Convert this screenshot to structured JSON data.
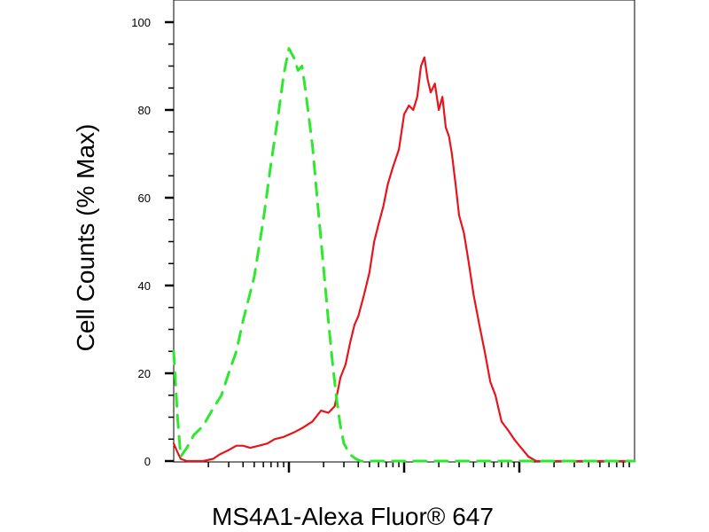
{
  "chart_data": {
    "type": "line",
    "title": "",
    "xlabel": "MS4A1-Alexa Fluor® 647",
    "ylabel": "Cell Counts (% Max)",
    "x_scale": "log",
    "xlim": [
      1,
      10000
    ],
    "ylim": [
      0,
      100
    ],
    "y_ticks": [
      0,
      20,
      40,
      60,
      80,
      100
    ],
    "y_tick_labels": [
      "0",
      "20",
      "40",
      "60",
      "80",
      "100"
    ],
    "x_tick_labels": [],
    "grid": false,
    "legend": "none",
    "series": [
      {
        "style": "solid",
        "color": "#e8141b",
        "x": [
          1.0,
          1.08,
          1.15,
          1.3,
          1.5,
          1.8,
          2.2,
          2.5,
          3.0,
          3.5,
          4.0,
          4.6,
          5.5,
          6.5,
          7.5,
          9.0,
          11,
          13,
          16,
          19,
          22,
          25,
          28,
          31,
          34,
          37,
          40,
          45,
          50,
          55,
          60,
          66,
          72,
          80,
          90,
          100,
          110,
          120,
          130,
          140,
          150,
          160,
          170,
          185,
          200,
          215,
          230,
          245,
          260,
          280,
          300,
          330,
          360,
          400,
          450,
          500,
          560,
          620,
          700,
          800,
          900,
          1000,
          1200,
          1400,
          1600,
          1800,
          2000,
          2500,
          3000,
          4000,
          5000,
          7000,
          10000
        ],
        "y": [
          4,
          2,
          0.5,
          0,
          0,
          0,
          0.5,
          1.5,
          2.5,
          3.5,
          3.5,
          3,
          3.5,
          4,
          5,
          5.5,
          6.5,
          7.5,
          9,
          11.5,
          11,
          12.5,
          19,
          22,
          27,
          31,
          33,
          38,
          43,
          50,
          54,
          58,
          63,
          67,
          71,
          79,
          81,
          80,
          83,
          90,
          92,
          87,
          84,
          86,
          80,
          83,
          76,
          74,
          70,
          63,
          56,
          52,
          46,
          38,
          31,
          25,
          18,
          15,
          9,
          7,
          5,
          3.5,
          1,
          0,
          0,
          0,
          0,
          0,
          0,
          0,
          0,
          0,
          0
        ]
      },
      {
        "style": "dashed",
        "color": "#2ee82e",
        "x": [
          1.0,
          1.08,
          1.15,
          1.3,
          1.5,
          1.8,
          2.2,
          2.6,
          3.0,
          3.5,
          4.0,
          5.0,
          6.0,
          7.0,
          8.0,
          9.0,
          10,
          11,
          12,
          13,
          14,
          16,
          18,
          20,
          22,
          24,
          26,
          28,
          30,
          34,
          38,
          42,
          50,
          60,
          80,
          100,
          200,
          400,
          1000,
          3000,
          10000
        ],
        "y": [
          25,
          10,
          1,
          3,
          6,
          8,
          12,
          15,
          20,
          25,
          32,
          42,
          55,
          68,
          78,
          88,
          94,
          92,
          89,
          90,
          84,
          72,
          57,
          44,
          32,
          22,
          14,
          8,
          4,
          1.5,
          0.5,
          0,
          0,
          0,
          0,
          0,
          0,
          0,
          0,
          0,
          0
        ]
      }
    ]
  }
}
